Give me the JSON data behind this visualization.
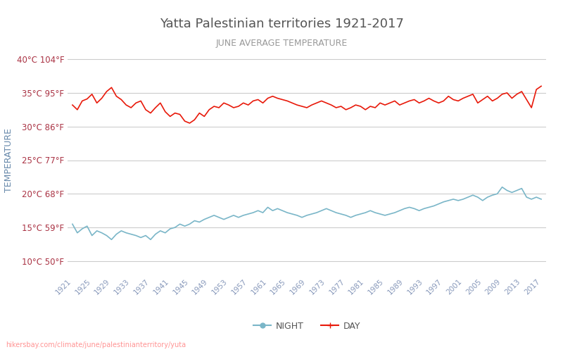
{
  "title": "Yatta Palestinian territories 1921-2017",
  "subtitle": "JUNE AVERAGE TEMPERATURE",
  "ylabel": "TEMPERATURE",
  "watermark": "hikersbay.com/climate/june/palestinianterritory/yuta",
  "years": [
    1921,
    1922,
    1923,
    1924,
    1925,
    1926,
    1927,
    1928,
    1929,
    1930,
    1931,
    1932,
    1933,
    1934,
    1935,
    1936,
    1937,
    1938,
    1939,
    1940,
    1941,
    1942,
    1943,
    1944,
    1945,
    1946,
    1947,
    1948,
    1949,
    1950,
    1951,
    1952,
    1953,
    1954,
    1955,
    1956,
    1957,
    1958,
    1959,
    1960,
    1961,
    1962,
    1963,
    1964,
    1965,
    1966,
    1967,
    1968,
    1969,
    1970,
    1971,
    1972,
    1973,
    1974,
    1975,
    1976,
    1977,
    1978,
    1979,
    1980,
    1981,
    1982,
    1983,
    1984,
    1985,
    1986,
    1987,
    1988,
    1989,
    1990,
    1991,
    1992,
    1993,
    1994,
    1995,
    1996,
    1997,
    1998,
    1999,
    2000,
    2001,
    2002,
    2003,
    2004,
    2005,
    2006,
    2007,
    2008,
    2009,
    2010,
    2011,
    2012,
    2013,
    2014,
    2015,
    2016,
    2017
  ],
  "day_temps": [
    33.2,
    32.5,
    33.8,
    34.1,
    34.8,
    33.5,
    34.2,
    35.2,
    35.8,
    34.5,
    34.0,
    33.2,
    32.8,
    33.5,
    33.8,
    32.5,
    32.0,
    32.8,
    33.5,
    32.2,
    31.5,
    32.0,
    31.8,
    30.8,
    30.5,
    31.0,
    32.0,
    31.5,
    32.5,
    33.0,
    32.8,
    33.5,
    33.2,
    32.8,
    33.0,
    33.5,
    33.2,
    33.8,
    34.0,
    33.5,
    34.2,
    34.5,
    34.2,
    34.0,
    33.8,
    33.5,
    33.2,
    33.0,
    32.8,
    33.2,
    33.5,
    33.8,
    33.5,
    33.2,
    32.8,
    33.0,
    32.5,
    32.8,
    33.2,
    33.0,
    32.5,
    33.0,
    32.8,
    33.5,
    33.2,
    33.5,
    33.8,
    33.2,
    33.5,
    33.8,
    34.0,
    33.5,
    33.8,
    34.2,
    33.8,
    33.5,
    33.8,
    34.5,
    34.0,
    33.8,
    34.2,
    34.5,
    34.8,
    33.5,
    34.0,
    34.5,
    33.8,
    34.2,
    34.8,
    35.0,
    34.2,
    34.8,
    35.2,
    34.0,
    32.8,
    35.5,
    36.0
  ],
  "night_temps": [
    15.5,
    14.2,
    14.8,
    15.2,
    13.8,
    14.5,
    14.2,
    13.8,
    13.2,
    14.0,
    14.5,
    14.2,
    14.0,
    13.8,
    13.5,
    13.8,
    13.2,
    14.0,
    14.5,
    14.2,
    14.8,
    15.0,
    15.5,
    15.2,
    15.5,
    16.0,
    15.8,
    16.2,
    16.5,
    16.8,
    16.5,
    16.2,
    16.5,
    16.8,
    16.5,
    16.8,
    17.0,
    17.2,
    17.5,
    17.2,
    18.0,
    17.5,
    17.8,
    17.5,
    17.2,
    17.0,
    16.8,
    16.5,
    16.8,
    17.0,
    17.2,
    17.5,
    17.8,
    17.5,
    17.2,
    17.0,
    16.8,
    16.5,
    16.8,
    17.0,
    17.2,
    17.5,
    17.2,
    17.0,
    16.8,
    17.0,
    17.2,
    17.5,
    17.8,
    18.0,
    17.8,
    17.5,
    17.8,
    18.0,
    18.2,
    18.5,
    18.8,
    19.0,
    19.2,
    19.0,
    19.2,
    19.5,
    19.8,
    19.5,
    19.0,
    19.5,
    19.8,
    20.0,
    21.0,
    20.5,
    20.2,
    20.5,
    20.8,
    19.5,
    19.2,
    19.5,
    19.2
  ],
  "yticks_c": [
    10,
    15,
    20,
    25,
    30,
    35,
    40
  ],
  "ytick_labels": [
    "10°C 50°F",
    "15°C 59°F",
    "20°C 68°F",
    "25°C 77°F",
    "30°C 86°F",
    "35°C 95°F",
    "40°C 104°F"
  ],
  "xtick_years": [
    1921,
    1925,
    1929,
    1933,
    1937,
    1941,
    1945,
    1949,
    1953,
    1957,
    1961,
    1965,
    1969,
    1973,
    1977,
    1981,
    1985,
    1989,
    1993,
    1997,
    2001,
    2005,
    2009,
    2013,
    2017
  ],
  "day_color": "#e8190a",
  "night_color": "#7ab6c8",
  "title_color": "#555555",
  "subtitle_color": "#999999",
  "ylabel_color": "#6688aa",
  "tick_color": "#aa3344",
  "xtick_color": "#8899bb",
  "grid_color": "#cccccc",
  "bg_color": "#ffffff",
  "legend_night_label": "NIGHT",
  "legend_day_label": "DAY",
  "ylim": [
    8,
    42
  ],
  "xlim": [
    1920,
    2018
  ]
}
